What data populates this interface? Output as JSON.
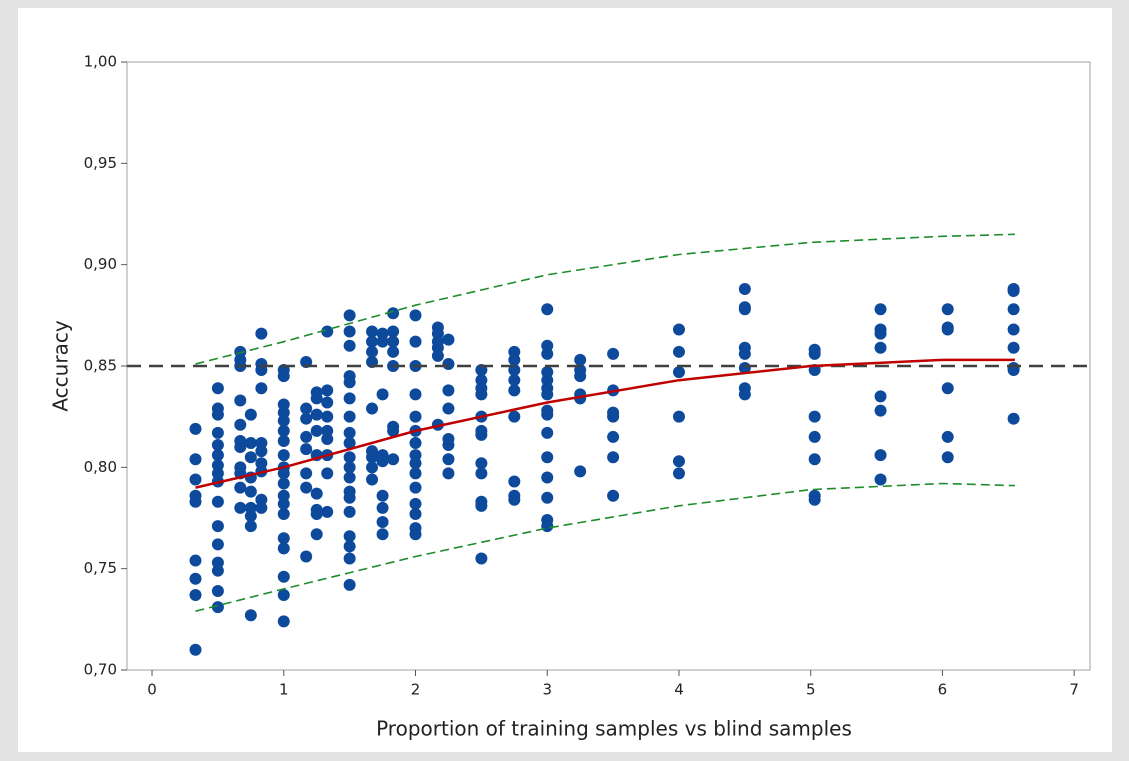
{
  "chart_data": {
    "type": "scatter",
    "xlabel": "Proportion of training samples vs blind samples",
    "ylabel": "Accuracy",
    "xlim": [
      -0.19,
      7.12
    ],
    "ylim": [
      0.7,
      1.0
    ],
    "xticks": [
      0,
      1,
      2,
      3,
      4,
      5,
      6,
      7
    ],
    "yticks": [
      {
        "value": 0.7,
        "label": "0,70"
      },
      {
        "value": 0.75,
        "label": "0,75"
      },
      {
        "value": 0.8,
        "label": "0,80"
      },
      {
        "value": 0.85,
        "label": "0,85"
      },
      {
        "value": 0.9,
        "label": "0,90"
      },
      {
        "value": 0.95,
        "label": "0,95"
      },
      {
        "value": 1.0,
        "label": "1,00"
      }
    ],
    "hline": {
      "value": 0.85,
      "color": "#404040"
    },
    "series": [
      {
        "style": "points",
        "color": "#0d4a9c",
        "x": [
          0.33,
          0.33,
          0.33,
          0.33,
          0.33,
          0.33,
          0.33,
          0.33,
          0.33,
          0.5,
          0.5,
          0.5,
          0.5,
          0.5,
          0.5,
          0.5,
          0.5,
          0.5,
          0.5,
          0.5,
          0.5,
          0.5,
          0.5,
          0.5,
          0.5,
          0.67,
          0.67,
          0.67,
          0.67,
          0.67,
          0.67,
          0.67,
          0.67,
          0.67,
          0.67,
          0.67,
          0.75,
          0.75,
          0.75,
          0.75,
          0.75,
          0.75,
          0.75,
          0.75,
          0.75,
          0.83,
          0.83,
          0.83,
          0.83,
          0.83,
          0.83,
          0.83,
          0.83,
          0.83,
          0.83,
          1.0,
          1.0,
          1.0,
          1.0,
          1.0,
          1.0,
          1.0,
          1.0,
          1.0,
          1.0,
          1.0,
          1.0,
          1.0,
          1.0,
          1.0,
          1.0,
          1.0,
          1.0,
          1.0,
          1.17,
          1.17,
          1.17,
          1.17,
          1.17,
          1.17,
          1.17,
          1.17,
          1.25,
          1.25,
          1.25,
          1.25,
          1.25,
          1.25,
          1.25,
          1.25,
          1.25,
          1.33,
          1.33,
          1.33,
          1.33,
          1.33,
          1.33,
          1.33,
          1.33,
          1.33,
          1.5,
          1.5,
          1.5,
          1.5,
          1.5,
          1.5,
          1.5,
          1.5,
          1.5,
          1.5,
          1.5,
          1.5,
          1.5,
          1.5,
          1.5,
          1.5,
          1.5,
          1.5,
          1.5,
          1.67,
          1.67,
          1.67,
          1.67,
          1.67,
          1.67,
          1.67,
          1.67,
          1.67,
          1.75,
          1.75,
          1.75,
          1.75,
          1.75,
          1.75,
          1.75,
          1.75,
          1.75,
          1.83,
          1.83,
          1.83,
          1.83,
          1.83,
          1.83,
          1.83,
          1.83,
          2.0,
          2.0,
          2.0,
          2.0,
          2.0,
          2.0,
          2.0,
          2.0,
          2.0,
          2.0,
          2.0,
          2.0,
          2.0,
          2.0,
          2.0,
          2.17,
          2.17,
          2.17,
          2.17,
          2.17,
          2.17,
          2.25,
          2.25,
          2.25,
          2.25,
          2.25,
          2.25,
          2.25,
          2.25,
          2.5,
          2.5,
          2.5,
          2.5,
          2.5,
          2.5,
          2.5,
          2.5,
          2.5,
          2.5,
          2.5,
          2.5,
          2.75,
          2.75,
          2.75,
          2.75,
          2.75,
          2.75,
          2.75,
          2.75,
          2.75,
          3.0,
          3.0,
          3.0,
          3.0,
          3.0,
          3.0,
          3.0,
          3.0,
          3.0,
          3.0,
          3.0,
          3.0,
          3.0,
          3.0,
          3.0,
          3.25,
          3.25,
          3.25,
          3.25,
          3.25,
          3.25,
          3.5,
          3.5,
          3.5,
          3.5,
          3.5,
          3.5,
          3.5,
          4.0,
          4.0,
          4.0,
          4.0,
          4.0,
          4.0,
          4.5,
          4.5,
          4.5,
          4.5,
          4.5,
          4.5,
          4.5,
          4.5,
          5.03,
          5.03,
          5.03,
          5.03,
          5.03,
          5.03,
          5.03,
          5.03,
          5.53,
          5.53,
          5.53,
          5.53,
          5.53,
          5.53,
          5.53,
          5.53,
          6.04,
          6.04,
          6.04,
          6.04,
          6.04,
          6.04,
          6.54,
          6.54,
          6.54,
          6.54,
          6.54,
          6.54,
          6.54,
          6.54
        ],
        "values": [
          0.819,
          0.804,
          0.794,
          0.786,
          0.783,
          0.754,
          0.745,
          0.737,
          0.71,
          0.839,
          0.829,
          0.826,
          0.817,
          0.811,
          0.806,
          0.801,
          0.797,
          0.793,
          0.783,
          0.771,
          0.762,
          0.753,
          0.749,
          0.739,
          0.731,
          0.857,
          0.853,
          0.85,
          0.833,
          0.821,
          0.813,
          0.81,
          0.8,
          0.797,
          0.79,
          0.78,
          0.826,
          0.812,
          0.805,
          0.795,
          0.788,
          0.78,
          0.776,
          0.771,
          0.727,
          0.866,
          0.851,
          0.848,
          0.839,
          0.812,
          0.808,
          0.802,
          0.798,
          0.784,
          0.78,
          0.848,
          0.845,
          0.831,
          0.827,
          0.823,
          0.818,
          0.813,
          0.806,
          0.8,
          0.797,
          0.792,
          0.786,
          0.782,
          0.777,
          0.765,
          0.76,
          0.746,
          0.737,
          0.724,
          0.852,
          0.829,
          0.824,
          0.815,
          0.809,
          0.797,
          0.79,
          0.756,
          0.837,
          0.834,
          0.826,
          0.818,
          0.806,
          0.787,
          0.779,
          0.777,
          0.767,
          0.867,
          0.838,
          0.832,
          0.825,
          0.818,
          0.814,
          0.806,
          0.797,
          0.778,
          0.875,
          0.867,
          0.86,
          0.845,
          0.842,
          0.834,
          0.825,
          0.817,
          0.812,
          0.805,
          0.8,
          0.795,
          0.788,
          0.785,
          0.778,
          0.766,
          0.761,
          0.755,
          0.742,
          0.867,
          0.862,
          0.857,
          0.852,
          0.829,
          0.808,
          0.805,
          0.8,
          0.794,
          0.866,
          0.862,
          0.836,
          0.806,
          0.803,
          0.786,
          0.78,
          0.773,
          0.767,
          0.876,
          0.867,
          0.862,
          0.857,
          0.85,
          0.82,
          0.818,
          0.804,
          0.875,
          0.862,
          0.85,
          0.836,
          0.825,
          0.818,
          0.812,
          0.806,
          0.802,
          0.797,
          0.79,
          0.782,
          0.777,
          0.77,
          0.767,
          0.869,
          0.866,
          0.862,
          0.859,
          0.855,
          0.821,
          0.863,
          0.851,
          0.838,
          0.829,
          0.814,
          0.811,
          0.804,
          0.797,
          0.848,
          0.843,
          0.839,
          0.836,
          0.825,
          0.818,
          0.816,
          0.802,
          0.797,
          0.783,
          0.781,
          0.755,
          0.857,
          0.853,
          0.848,
          0.843,
          0.838,
          0.825,
          0.793,
          0.786,
          0.784,
          0.878,
          0.86,
          0.856,
          0.847,
          0.843,
          0.839,
          0.836,
          0.828,
          0.826,
          0.817,
          0.805,
          0.795,
          0.785,
          0.774,
          0.771,
          0.853,
          0.848,
          0.845,
          0.836,
          0.834,
          0.798,
          0.856,
          0.838,
          0.827,
          0.825,
          0.815,
          0.805,
          0.786,
          0.868,
          0.857,
          0.847,
          0.825,
          0.803,
          0.797,
          0.888,
          0.879,
          0.878,
          0.859,
          0.856,
          0.849,
          0.839,
          0.836,
          0.858,
          0.856,
          0.848,
          0.825,
          0.815,
          0.804,
          0.786,
          0.784,
          0.878,
          0.868,
          0.866,
          0.859,
          0.835,
          0.828,
          0.806,
          0.794,
          0.878,
          0.869,
          0.868,
          0.839,
          0.815,
          0.805,
          0.888,
          0.887,
          0.878,
          0.868,
          0.859,
          0.849,
          0.848,
          0.824
        ]
      },
      {
        "style": "line",
        "color": "#c00000",
        "x": [
          0.33,
          1,
          2,
          3,
          4,
          5,
          6,
          6.55
        ],
        "values": [
          0.79,
          0.8,
          0.818,
          0.832,
          0.843,
          0.85,
          0.853,
          0.853
        ]
      },
      {
        "style": "dashed",
        "color": "#1e8c2a",
        "x": [
          0.33,
          1,
          2,
          3,
          4,
          5,
          6,
          6.55
        ],
        "values": [
          0.851,
          0.862,
          0.88,
          0.895,
          0.905,
          0.911,
          0.914,
          0.915
        ]
      },
      {
        "style": "dashed",
        "color": "#1e8c2a",
        "x": [
          0.33,
          1,
          2,
          3,
          4,
          5,
          6,
          6.55
        ],
        "values": [
          0.729,
          0.74,
          0.756,
          0.77,
          0.781,
          0.789,
          0.792,
          0.791
        ]
      }
    ]
  }
}
